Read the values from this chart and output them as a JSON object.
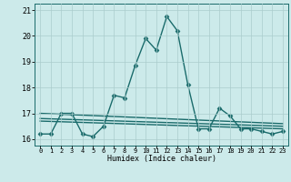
{
  "title": "",
  "xlabel": "Humidex (Indice chaleur)",
  "bg_color": "#cceaea",
  "grid_color": "#aacccc",
  "line_color": "#1a6b6b",
  "xlim": [
    -0.5,
    23.5
  ],
  "ylim": [
    15.75,
    21.25
  ],
  "yticks": [
    16,
    17,
    18,
    19,
    20,
    21
  ],
  "xticks": [
    0,
    1,
    2,
    3,
    4,
    5,
    6,
    7,
    8,
    9,
    10,
    11,
    12,
    13,
    14,
    15,
    16,
    17,
    18,
    19,
    20,
    21,
    22,
    23
  ],
  "series": [
    {
      "x": [
        0,
        1,
        2,
        3,
        4,
        5,
        6,
        7,
        8,
        9,
        10,
        11,
        12,
        13,
        14,
        15,
        16,
        17,
        18,
        19,
        20,
        21,
        22,
        23
      ],
      "y": [
        16.2,
        16.2,
        17.0,
        17.0,
        16.2,
        16.1,
        16.5,
        17.7,
        17.6,
        18.85,
        19.9,
        19.45,
        20.75,
        20.2,
        18.1,
        16.4,
        16.4,
        17.2,
        16.9,
        16.4,
        16.4,
        16.3,
        16.2,
        16.3
      ],
      "marker": "D",
      "markersize": 2.5,
      "linewidth": 1.0
    },
    {
      "x": [
        0,
        23
      ],
      "y": [
        17.0,
        16.6
      ],
      "marker": null,
      "markersize": 0,
      "linewidth": 1.0
    },
    {
      "x": [
        0,
        23
      ],
      "y": [
        16.8,
        16.5
      ],
      "marker": null,
      "markersize": 0,
      "linewidth": 1.0
    },
    {
      "x": [
        0,
        23
      ],
      "y": [
        16.7,
        16.4
      ],
      "marker": null,
      "markersize": 0,
      "linewidth": 1.0
    }
  ]
}
